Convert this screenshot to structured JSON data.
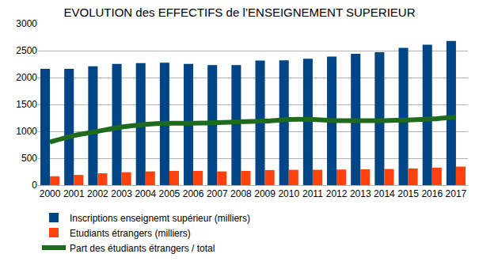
{
  "chart_data": {
    "type": "bar",
    "title": "EVOLUTION des EFFECTIFS de l’ENSEIGNEMENT SUPERIEUR",
    "categories": [
      "2000",
      "2001",
      "2002",
      "2003",
      "2004",
      "2005",
      "2006",
      "2007",
      "2008",
      "2009",
      "2010",
      "2011",
      "2012",
      "2013",
      "2014",
      "2015",
      "2016",
      "2017"
    ],
    "series": [
      {
        "name": "Inscriptions enseignemt supérieur (milliers)",
        "type": "bar",
        "color": "#004586",
        "values": [
          2160,
          2160,
          2210,
          2255,
          2270,
          2275,
          2255,
          2230,
          2230,
          2315,
          2320,
          2350,
          2390,
          2440,
          2470,
          2550,
          2610,
          2680
        ]
      },
      {
        "name": "Etudiants étrangers (milliers)",
        "type": "bar",
        "color": "#ff420e",
        "values": [
          165,
          190,
          220,
          240,
          255,
          265,
          265,
          255,
          265,
          280,
          285,
          285,
          290,
          295,
          300,
          310,
          325,
          345
        ]
      },
      {
        "name": "Part des étudiants étrangers / total",
        "type": "line",
        "color": "#1e6b1e",
        "values": [
          800,
          920,
          1000,
          1080,
          1130,
          1150,
          1150,
          1160,
          1180,
          1190,
          1220,
          1220,
          1200,
          1200,
          1200,
          1210,
          1230,
          1270
        ]
      }
    ],
    "ylim": [
      0,
      3000
    ],
    "yticks": [
      0,
      500,
      1000,
      1500,
      2000,
      2500,
      3000
    ],
    "grid": true,
    "legend": "bottom"
  }
}
